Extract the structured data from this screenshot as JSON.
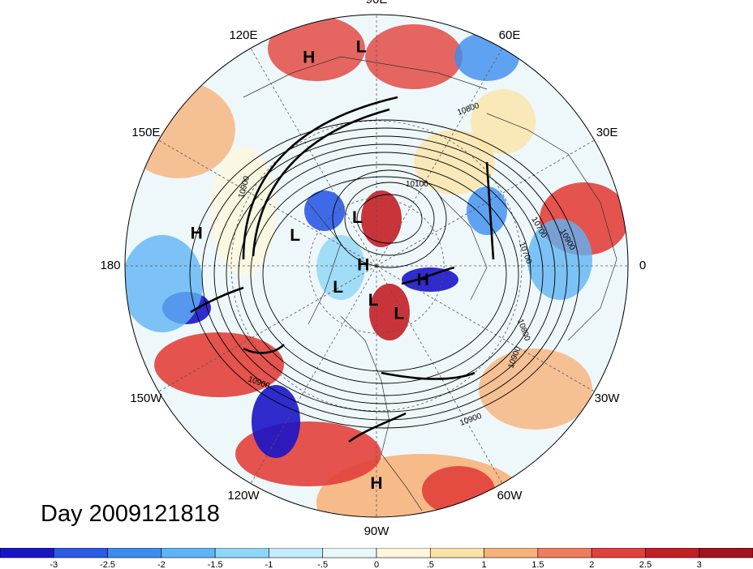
{
  "map": {
    "projection": "north-polar-stereographic",
    "longitude_labels": [
      "90E",
      "60E",
      "30E",
      "0",
      "30W",
      "60W",
      "90W",
      "120W",
      "150W",
      "180",
      "150E",
      "120E"
    ],
    "pressure_centers": [
      {
        "label": "H",
        "lon": 108,
        "lat": 8
      },
      {
        "label": "L",
        "lon": 94,
        "lat": 8
      },
      {
        "label": "H",
        "lon": 170,
        "lat": 18
      },
      {
        "label": "L",
        "lon": 160,
        "lat": 52
      },
      {
        "label": "L",
        "lon": 112,
        "lat": 67
      },
      {
        "label": "H",
        "lon": 180,
        "lat": 84
      },
      {
        "label": "L",
        "lon": 210,
        "lat": 70
      },
      {
        "label": "H",
        "lon": 342,
        "lat": 68
      },
      {
        "label": "L",
        "lon": 265,
        "lat": 74
      },
      {
        "label": "L",
        "lon": 295,
        "lat": 66
      },
      {
        "label": "H",
        "lon": 270,
        "lat": 8
      }
    ],
    "contour_labels": [
      "10800",
      "10100",
      "10900",
      "10900",
      "10700",
      "10700",
      "10800",
      "10900",
      "10900",
      "10900"
    ],
    "contour_interval_note": "10800"
  },
  "day_label": "Day 2009121818",
  "colorbar": {
    "ticks": [
      "-3",
      "-2.5",
      "-2",
      "-1.5",
      "-1",
      "-.5",
      "0",
      ".5",
      "1",
      "1.5",
      "2",
      "2.5",
      "3"
    ],
    "colors": [
      "#1a14c8",
      "#2a5ae6",
      "#3c8cf0",
      "#5fb4f5",
      "#8fd6f8",
      "#c4ecfa",
      "#eaf7fb",
      "#fdf6dc",
      "#fbe3a8",
      "#f7b27c",
      "#ef7c5c",
      "#e2403a",
      "#c41e26",
      "#a3121c"
    ]
  }
}
